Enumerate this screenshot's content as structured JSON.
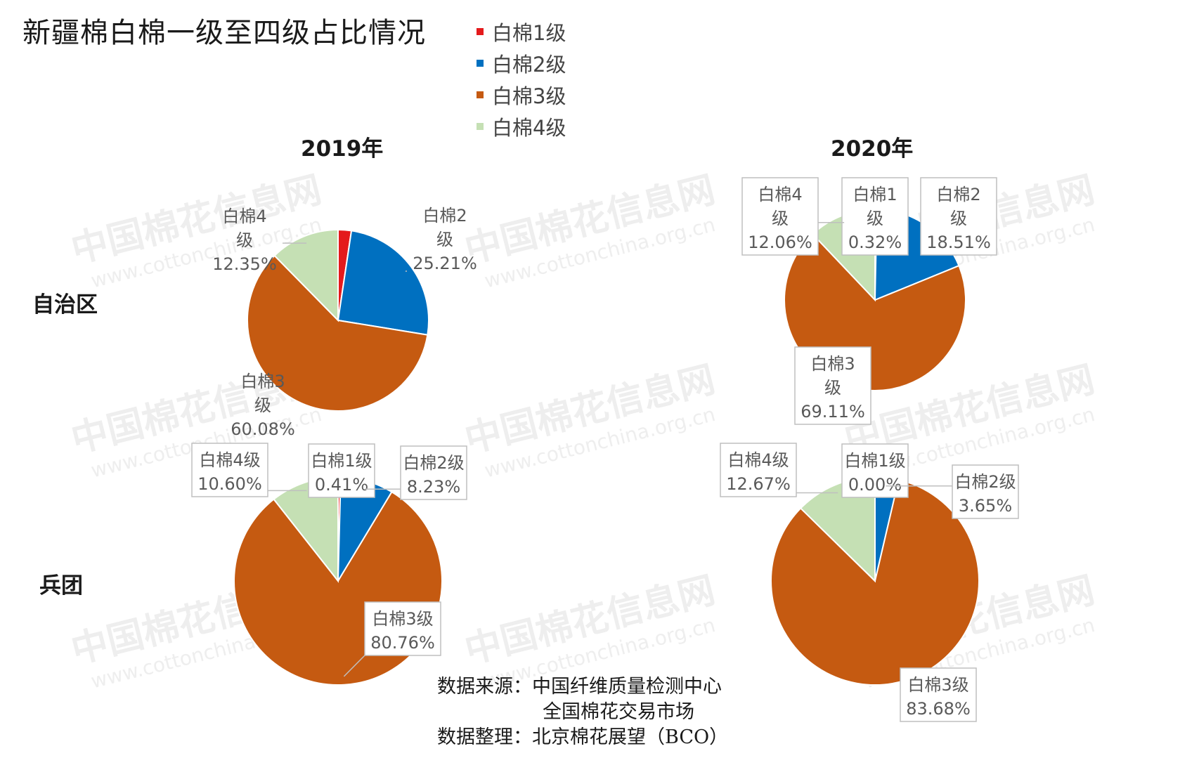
{
  "title": "新疆棉白棉一级至四级占比情况",
  "watermark": {
    "cn": "中国棉花信息网",
    "url": "www.cottonchina.org.cn"
  },
  "legend": [
    {
      "label": "白棉1级",
      "color": "#e41a1c"
    },
    {
      "label": "白棉2级",
      "color": "#0070c0"
    },
    {
      "label": "白棉3级",
      "color": "#c55a11"
    },
    {
      "label": "白棉4级",
      "color": "#c5e0b4"
    }
  ],
  "years": [
    "2019年",
    "2020年"
  ],
  "rows": [
    "自治区",
    "兵团"
  ],
  "source": {
    "line1": "数据来源：中国纤维质量检测中心",
    "line2": "全国棉花交易市场",
    "line3": "数据整理：北京棉花展望（BCO）"
  },
  "chart_data": [
    {
      "type": "pie",
      "title": "2019年 自治区",
      "categories": [
        "白棉1级",
        "白棉2级",
        "白棉3级",
        "白棉4级"
      ],
      "values": [
        2.36,
        25.21,
        60.08,
        12.35
      ],
      "labels": [
        "",
        "白棉2\n级\n25.21%",
        "白棉3\n级\n60.08%",
        "白棉4\n级\n12.35%"
      ]
    },
    {
      "type": "pie",
      "title": "2020年 自治区",
      "categories": [
        "白棉1级",
        "白棉2级",
        "白棉3级",
        "白棉4级"
      ],
      "values": [
        0.32,
        18.51,
        69.11,
        12.06
      ],
      "labels": [
        "白棉1\n级\n0.32%",
        "白棉2\n级\n18.51%",
        "白棉3\n级\n69.11%",
        "白棉4\n级\n12.06%"
      ]
    },
    {
      "type": "pie",
      "title": "2019年 兵团",
      "categories": [
        "白棉1级",
        "白棉2级",
        "白棉3级",
        "白棉4级"
      ],
      "values": [
        0.41,
        8.23,
        80.76,
        10.6
      ],
      "labels": [
        "白棉1级\n0.41%",
        "白棉2级\n8.23%",
        "白棉3级\n80.76%",
        "白棉4级\n10.60%"
      ]
    },
    {
      "type": "pie",
      "title": "2020年 兵团",
      "categories": [
        "白棉1级",
        "白棉2级",
        "白棉3级",
        "白棉4级"
      ],
      "values": [
        0.0,
        3.65,
        83.68,
        12.67
      ],
      "labels": [
        "白棉1级\n0.00%",
        "白棉2级\n3.65%",
        "白棉3级\n83.68%",
        "白棉4级\n12.67%"
      ]
    }
  ]
}
